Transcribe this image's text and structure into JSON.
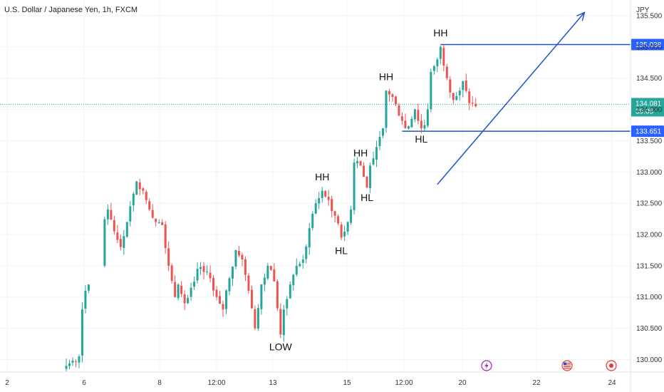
{
  "chart_data": {
    "type": "candlestick",
    "title": "U.S. Dollar / Japanese Yen, 1h, FXCM",
    "currency_label": "JPY",
    "ylim": [
      129.8,
      135.75
    ],
    "y_ticks": [
      130.0,
      130.5,
      131.0,
      131.5,
      132.0,
      132.5,
      133.0,
      133.5,
      134.0,
      134.5,
      135.0,
      135.5
    ],
    "x_ticks": [
      "2",
      "6",
      "8",
      "12:00",
      "13",
      "15",
      "12:00",
      "20",
      "22",
      "24"
    ],
    "colors": {
      "up": "#26a69a",
      "down": "#ef5350",
      "drawing": "#1e55c8",
      "current": "#26a69a",
      "level": "#2962ff"
    },
    "path": [
      [
        0,
        129.9
      ],
      [
        4,
        130.05
      ],
      [
        5,
        130.8
      ],
      [
        6,
        131.1
      ],
      [
        7,
        131.2
      ],
      [
        13,
        132.4
      ],
      [
        15,
        132.05
      ],
      [
        17,
        131.8
      ],
      [
        19,
        132.2
      ],
      [
        22,
        132.85
      ],
      [
        24,
        132.7
      ],
      [
        26,
        132.4
      ],
      [
        28,
        132.2
      ],
      [
        30,
        132.15
      ],
      [
        32,
        131.5
      ],
      [
        34,
        131.0
      ],
      [
        35,
        131.2
      ],
      [
        37,
        130.9
      ],
      [
        39,
        131.15
      ],
      [
        41,
        131.45
      ],
      [
        43,
        131.4
      ],
      [
        45,
        131.3
      ],
      [
        47,
        131.0
      ],
      [
        49,
        130.8
      ],
      [
        51,
        131.3
      ],
      [
        53,
        131.75
      ],
      [
        55,
        131.6
      ],
      [
        57,
        131.1
      ],
      [
        59,
        130.5
      ],
      [
        61,
        131.2
      ],
      [
        63,
        131.5
      ],
      [
        65,
        131.25
      ],
      [
        67,
        130.4
      ],
      [
        68,
        130.8
      ],
      [
        70,
        131.2
      ],
      [
        72,
        131.5
      ],
      [
        74,
        131.6
      ],
      [
        76,
        132.1
      ],
      [
        78,
        132.5
      ],
      [
        80,
        132.7
      ],
      [
        82,
        132.55
      ],
      [
        84,
        132.3
      ],
      [
        86,
        131.95
      ],
      [
        88,
        132.2
      ],
      [
        89,
        132.4
      ],
      [
        90,
        133.15
      ],
      [
        92,
        133.1
      ],
      [
        94,
        132.75
      ],
      [
        95,
        133.1
      ],
      [
        97,
        133.4
      ],
      [
        99,
        133.7
      ],
      [
        100,
        134.3
      ],
      [
        102,
        134.2
      ],
      [
        104,
        133.9
      ],
      [
        106,
        133.7
      ],
      [
        108,
        133.85
      ],
      [
        109,
        134.0
      ],
      [
        111,
        133.7
      ],
      [
        112,
        133.75
      ],
      [
        113,
        134.0
      ],
      [
        114,
        134.6
      ],
      [
        116,
        134.8
      ],
      [
        117,
        135.0
      ],
      [
        119,
        134.5
      ],
      [
        121,
        134.15
      ],
      [
        123,
        134.3
      ],
      [
        124,
        134.45
      ],
      [
        126,
        134.1
      ],
      [
        128,
        134.05
      ]
    ],
    "annotations": [
      {
        "text": "LOW",
        "index": 67,
        "price": 130.33,
        "position": "below"
      },
      {
        "text": "HL",
        "index": 86,
        "price": 131.87,
        "position": "below"
      },
      {
        "text": "HH",
        "index": 80,
        "price": 132.8,
        "position": "above"
      },
      {
        "text": "HL",
        "index": 94,
        "price": 132.72,
        "position": "below"
      },
      {
        "text": "HH",
        "index": 92,
        "price": 133.18,
        "position": "above"
      },
      {
        "text": "HH",
        "index": 100,
        "price": 134.4,
        "position": "above"
      },
      {
        "text": "HL",
        "index": 111,
        "price": 133.65,
        "position": "below"
      },
      {
        "text": "HH",
        "index": 117,
        "price": 135.1,
        "position": "above"
      }
    ],
    "horizontal_levels": [
      {
        "label": "135.038",
        "price": 135.038,
        "from_index": 117
      },
      {
        "label": "133.651",
        "price": 133.651,
        "from_index": 105
      }
    ],
    "current_price": {
      "label": "134.081",
      "price": 134.081,
      "countdown": "39:05"
    },
    "trendline": {
      "from": [
        116,
        132.8
      ],
      "to": [
        162,
        135.55
      ],
      "arrow": true
    },
    "event_icons": [
      "lightning-icon",
      "us-flag-icon",
      "record-icon"
    ]
  }
}
